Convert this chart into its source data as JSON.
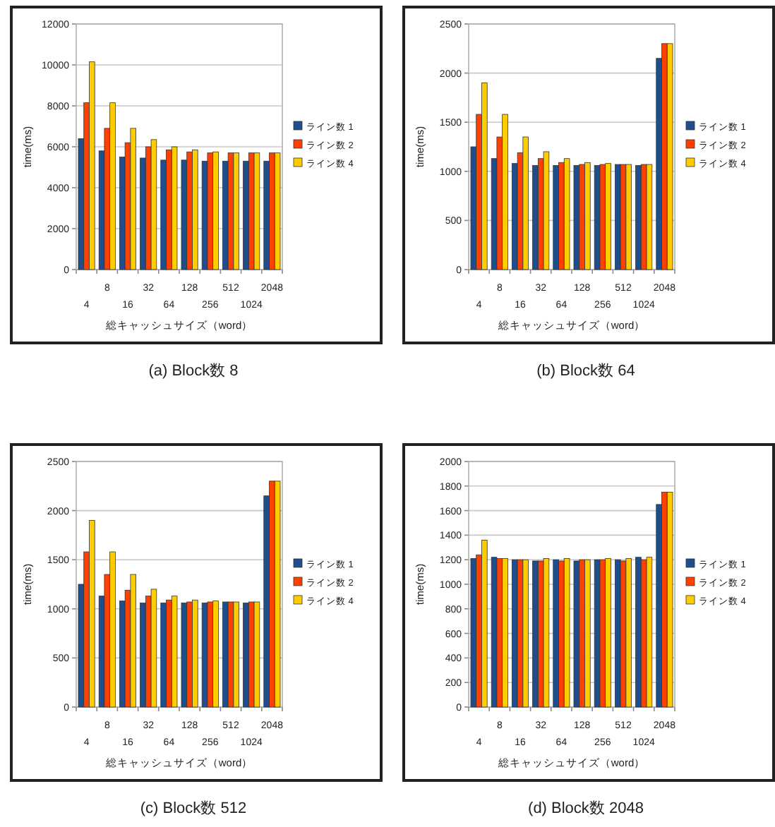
{
  "chart_data": [
    {
      "type": "bar",
      "title": "(a) Block数 8",
      "xlabel": "総キャッシュサイズ（word）",
      "ylabel": "time(ms)",
      "categories": [
        "4",
        "8",
        "16",
        "32",
        "64",
        "128",
        "256",
        "512",
        "1024",
        "2048"
      ],
      "ylim": [
        0,
        12000
      ],
      "yticks": [
        0,
        2000,
        4000,
        6000,
        8000,
        10000,
        12000
      ],
      "grid": "y",
      "legend": "right",
      "series": [
        {
          "name": "ライン数 1",
          "color": "#1f4e8c",
          "values": [
            6400,
            5800,
            5500,
            5450,
            5350,
            5350,
            5300,
            5300,
            5300,
            5300
          ]
        },
        {
          "name": "ライン数 2",
          "color": "#ff4000",
          "values": [
            8150,
            6900,
            6200,
            6000,
            5850,
            5750,
            5700,
            5700,
            5700,
            5700
          ]
        },
        {
          "name": "ライン数 4",
          "color": "#ffcc00",
          "values": [
            10150,
            8150,
            6900,
            6350,
            6000,
            5850,
            5750,
            5700,
            5700,
            5700
          ]
        }
      ]
    },
    {
      "type": "bar",
      "title": "(b) Block数 64",
      "xlabel": "総キャッシュサイズ（word）",
      "ylabel": "time(ms)",
      "categories": [
        "4",
        "8",
        "16",
        "32",
        "64",
        "128",
        "256",
        "512",
        "1024",
        "2048"
      ],
      "ylim": [
        0,
        2500
      ],
      "yticks": [
        0,
        500,
        1000,
        1500,
        2000,
        2500
      ],
      "grid": "y",
      "legend": "right",
      "series": [
        {
          "name": "ライン数 1",
          "color": "#1f4e8c",
          "values": [
            1250,
            1130,
            1080,
            1060,
            1060,
            1060,
            1060,
            1070,
            1060,
            2150
          ]
        },
        {
          "name": "ライン数 2",
          "color": "#ff4000",
          "values": [
            1580,
            1350,
            1190,
            1130,
            1090,
            1070,
            1070,
            1070,
            1070,
            2300
          ]
        },
        {
          "name": "ライン数 4",
          "color": "#ffcc00",
          "values": [
            1900,
            1580,
            1350,
            1200,
            1130,
            1090,
            1080,
            1070,
            1070,
            2300
          ]
        }
      ]
    },
    {
      "type": "bar",
      "title": "(c) Block数 512",
      "xlabel": "総キャッシュサイズ（word）",
      "ylabel": "time(ms)",
      "categories": [
        "4",
        "8",
        "16",
        "32",
        "64",
        "128",
        "256",
        "512",
        "1024",
        "2048"
      ],
      "ylim": [
        0,
        2500
      ],
      "yticks": [
        0,
        500,
        1000,
        1500,
        2000,
        2500
      ],
      "grid": "y",
      "legend": "right",
      "series": [
        {
          "name": "ライン数 1",
          "color": "#1f4e8c",
          "values": [
            1250,
            1130,
            1080,
            1060,
            1060,
            1060,
            1060,
            1070,
            1060,
            2150
          ]
        },
        {
          "name": "ライン数 2",
          "color": "#ff4000",
          "values": [
            1580,
            1350,
            1190,
            1130,
            1090,
            1070,
            1070,
            1070,
            1070,
            2300
          ]
        },
        {
          "name": "ライン数 4",
          "color": "#ffcc00",
          "values": [
            1900,
            1580,
            1350,
            1200,
            1130,
            1090,
            1080,
            1070,
            1070,
            2300
          ]
        }
      ]
    },
    {
      "type": "bar",
      "title": "(d) Block数 2048",
      "xlabel": "総キャッシュサイズ（word）",
      "ylabel": "time(ms)",
      "categories": [
        "4",
        "8",
        "16",
        "32",
        "64",
        "128",
        "256",
        "512",
        "1024",
        "2048"
      ],
      "ylim": [
        0,
        2000
      ],
      "yticks": [
        0,
        200,
        400,
        600,
        800,
        1000,
        1200,
        1400,
        1600,
        1800,
        2000
      ],
      "grid": "y",
      "legend": "right",
      "series": [
        {
          "name": "ライン数 1",
          "color": "#1f4e8c",
          "values": [
            1210,
            1220,
            1200,
            1190,
            1200,
            1190,
            1200,
            1200,
            1220,
            1650
          ]
        },
        {
          "name": "ライン数 2",
          "color": "#ff4000",
          "values": [
            1240,
            1210,
            1200,
            1190,
            1190,
            1200,
            1200,
            1190,
            1200,
            1750
          ]
        },
        {
          "name": "ライン数 4",
          "color": "#ffcc00",
          "values": [
            1360,
            1210,
            1200,
            1210,
            1210,
            1200,
            1210,
            1210,
            1220,
            1750
          ]
        }
      ]
    }
  ]
}
